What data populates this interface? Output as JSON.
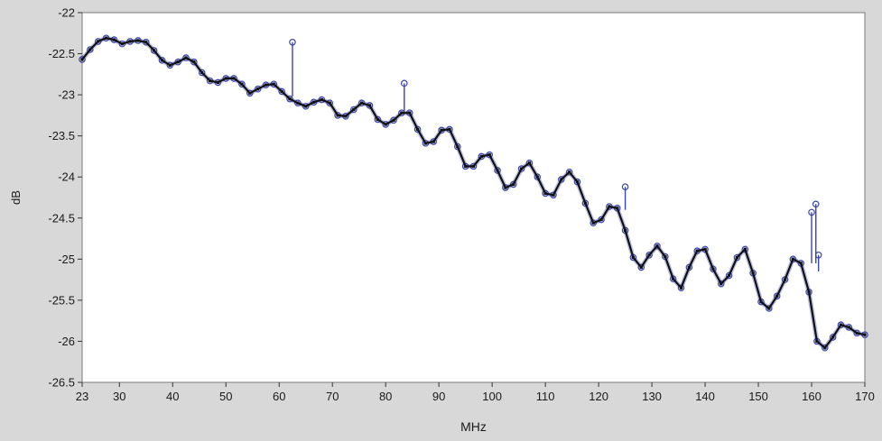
{
  "chart_data": {
    "type": "line",
    "xlabel": "MHz",
    "ylabel": "dB",
    "xlim": [
      23,
      170
    ],
    "ylim": [
      -26.5,
      -22
    ],
    "x_ticks": [
      23,
      30,
      40,
      50,
      60,
      70,
      80,
      90,
      100,
      110,
      120,
      130,
      140,
      150,
      160,
      170
    ],
    "y_ticks": [
      -22,
      -22.5,
      -23,
      -23.5,
      -24,
      -24.5,
      -25,
      -25.5,
      -26,
      -26.5
    ],
    "grid": false,
    "colors": {
      "trace": "#3b45a8",
      "fit": "#111111",
      "plot_bg": "#ffffff",
      "frame_bg": "#d8d8d8"
    },
    "series": [
      {
        "style": "markers",
        "x": [
          23,
          24.5,
          26,
          27.5,
          29,
          30.5,
          32,
          33.5,
          35,
          36.5,
          38,
          39.5,
          41,
          42.5,
          44,
          45.5,
          47,
          48.5,
          50,
          51.5,
          53,
          54.5,
          56,
          57.5,
          59,
          60.5,
          62,
          63.5,
          65,
          66.5,
          68,
          69.5,
          71,
          72.5,
          74,
          75.5,
          77,
          78.5,
          80,
          81.5,
          83,
          84.5,
          86,
          87.5,
          89,
          90.5,
          92,
          93.5,
          95,
          96.5,
          98,
          99.5,
          101,
          102.5,
          104,
          105.5,
          107,
          108.5,
          110,
          111.5,
          113,
          114.5,
          116,
          117.5,
          119,
          120.5,
          122,
          123.5,
          125,
          126.5,
          128,
          129.5,
          131,
          132.5,
          134,
          135.5,
          137,
          138.5,
          140,
          141.5,
          143,
          144.5,
          146,
          147.5,
          149,
          150.5,
          152,
          153.5,
          155,
          156.5,
          158,
          159.5,
          161,
          162.5,
          164,
          165.5,
          167,
          168.5,
          170
        ],
        "y": [
          -22.57,
          -22.45,
          -22.35,
          -22.31,
          -22.33,
          -22.38,
          -22.35,
          -22.34,
          -22.36,
          -22.46,
          -22.58,
          -22.64,
          -22.6,
          -22.55,
          -22.6,
          -22.73,
          -22.83,
          -22.85,
          -22.8,
          -22.8,
          -22.87,
          -22.98,
          -22.93,
          -22.88,
          -22.87,
          -22.96,
          -23.05,
          -23.1,
          -23.14,
          -23.09,
          -23.06,
          -23.1,
          -23.25,
          -23.26,
          -23.18,
          -23.1,
          -23.13,
          -23.3,
          -23.36,
          -23.31,
          -23.22,
          -23.22,
          -23.42,
          -23.59,
          -23.57,
          -23.43,
          -23.42,
          -23.63,
          -23.87,
          -23.87,
          -23.75,
          -23.73,
          -23.92,
          -24.13,
          -24.09,
          -23.9,
          -23.83,
          -24.0,
          -24.2,
          -24.22,
          -24.03,
          -23.94,
          -24.06,
          -24.32,
          -24.56,
          -24.52,
          -24.36,
          -24.38,
          -24.65,
          -24.98,
          -25.1,
          -24.95,
          -24.84,
          -24.97,
          -25.24,
          -25.35,
          -25.1,
          -24.9,
          -24.88,
          -25.12,
          -25.3,
          -25.2,
          -24.98,
          -24.88,
          -25.17,
          -25.52,
          -25.6,
          -25.45,
          -25.25,
          -25.0,
          -25.05,
          -25.4,
          -26.0,
          -26.08,
          -25.95,
          -25.8,
          -25.83,
          -25.9,
          -25.92
        ]
      },
      {
        "style": "line",
        "x": [
          23,
          24.5,
          26,
          27.5,
          29,
          30.5,
          32,
          33.5,
          35,
          36.5,
          38,
          39.5,
          41,
          42.5,
          44,
          45.5,
          47,
          48.5,
          50,
          51.5,
          53,
          54.5,
          56,
          57.5,
          59,
          60.5,
          62,
          63.5,
          65,
          66.5,
          68,
          69.5,
          71,
          72.5,
          74,
          75.5,
          77,
          78.5,
          80,
          81.5,
          83,
          84.5,
          86,
          87.5,
          89,
          90.5,
          92,
          93.5,
          95,
          96.5,
          98,
          99.5,
          101,
          102.5,
          104,
          105.5,
          107,
          108.5,
          110,
          111.5,
          113,
          114.5,
          116,
          117.5,
          119,
          120.5,
          122,
          123.5,
          125,
          126.5,
          128,
          129.5,
          131,
          132.5,
          134,
          135.5,
          137,
          138.5,
          140,
          141.5,
          143,
          144.5,
          146,
          147.5,
          149,
          150.5,
          152,
          153.5,
          155,
          156.5,
          158,
          159.5,
          161,
          162.5,
          164,
          165.5,
          167,
          168.5,
          170
        ],
        "y": [
          -22.57,
          -22.45,
          -22.35,
          -22.31,
          -22.33,
          -22.38,
          -22.35,
          -22.34,
          -22.36,
          -22.46,
          -22.58,
          -22.64,
          -22.6,
          -22.55,
          -22.6,
          -22.73,
          -22.83,
          -22.85,
          -22.8,
          -22.8,
          -22.87,
          -22.98,
          -22.93,
          -22.88,
          -22.87,
          -22.96,
          -23.05,
          -23.1,
          -23.14,
          -23.09,
          -23.06,
          -23.1,
          -23.25,
          -23.26,
          -23.18,
          -23.1,
          -23.13,
          -23.3,
          -23.36,
          -23.31,
          -23.22,
          -23.22,
          -23.42,
          -23.59,
          -23.57,
          -23.43,
          -23.42,
          -23.63,
          -23.87,
          -23.87,
          -23.75,
          -23.73,
          -23.92,
          -24.13,
          -24.09,
          -23.9,
          -23.83,
          -24.0,
          -24.2,
          -24.22,
          -24.03,
          -23.94,
          -24.06,
          -24.32,
          -24.56,
          -24.52,
          -24.36,
          -24.38,
          -24.65,
          -24.98,
          -25.1,
          -24.95,
          -24.84,
          -24.97,
          -25.24,
          -25.35,
          -25.1,
          -24.9,
          -24.88,
          -25.12,
          -25.3,
          -25.2,
          -24.98,
          -24.88,
          -25.17,
          -25.52,
          -25.6,
          -25.45,
          -25.25,
          -25.0,
          -25.05,
          -25.4,
          -26.0,
          -26.08,
          -25.95,
          -25.8,
          -25.83,
          -25.9,
          -25.92
        ]
      }
    ],
    "spikes": [
      {
        "x": 62.5,
        "base": -23.02,
        "peak": -22.36
      },
      {
        "x": 83.5,
        "base": -23.2,
        "peak": -22.86
      },
      {
        "x": 125.0,
        "base": -24.4,
        "peak": -24.12
      },
      {
        "x": 160.0,
        "base": -25.05,
        "peak": -24.43
      },
      {
        "x": 160.8,
        "base": -25.05,
        "peak": -24.33
      },
      {
        "x": 161.3,
        "base": -25.15,
        "peak": -24.95
      }
    ]
  }
}
